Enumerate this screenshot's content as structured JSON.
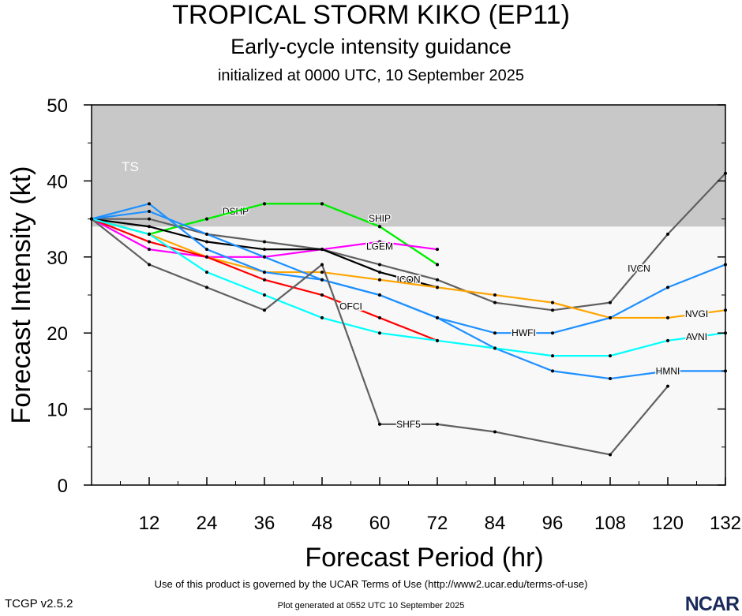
{
  "chart_data": {
    "type": "line",
    "title": "TROPICAL STORM KIKO (EP11)",
    "subtitle": "Early-cycle intensity guidance",
    "initialized": "initialized at 0000 UTC, 10 September 2025",
    "xlabel": "Forecast Period (hr)",
    "ylabel": "Forecast Intensity (kt)",
    "xlim": [
      0,
      132
    ],
    "ylim": [
      0,
      50
    ],
    "xticks": [
      12,
      24,
      36,
      48,
      60,
      72,
      84,
      96,
      108,
      120,
      132
    ],
    "yticks": [
      0,
      10,
      20,
      30,
      40,
      50
    ],
    "x": [
      0,
      12,
      24,
      36,
      48,
      60,
      72,
      84,
      96,
      108,
      120,
      132
    ],
    "bands": [
      {
        "label": "TS",
        "from": 34,
        "to": 50,
        "color": "#c8c8c8"
      }
    ],
    "background_color": "#f8f8f8",
    "series": [
      {
        "name": "DSHP",
        "color": "#00ee00",
        "values": [
          35,
          33,
          35,
          37,
          37,
          34,
          29,
          null,
          null,
          null,
          null,
          null
        ]
      },
      {
        "name": "SHIP",
        "color": "#00ee00",
        "values": [
          35,
          33,
          35,
          37,
          37,
          34,
          29,
          null,
          null,
          null,
          null,
          null
        ]
      },
      {
        "name": "LGEM",
        "color": "#ff00ff",
        "values": [
          35,
          31,
          30,
          30,
          31,
          32,
          31,
          null,
          null,
          null,
          null,
          null
        ]
      },
      {
        "name": "IVCN",
        "color": "#606060",
        "values": [
          35,
          35,
          33,
          32,
          31,
          29,
          27,
          24,
          23,
          24,
          33,
          41
        ]
      },
      {
        "name": "ICON",
        "color": "#000000",
        "values": [
          35,
          34,
          32,
          31,
          31,
          28,
          26,
          null,
          null,
          null,
          null,
          null
        ]
      },
      {
        "name": "NVGI",
        "color": "#ffa500",
        "values": [
          35,
          33,
          30,
          28,
          28,
          27,
          26,
          25,
          24,
          22,
          22,
          23
        ]
      },
      {
        "name": "HWFI",
        "color": "#1e90ff",
        "values": [
          35,
          36,
          33,
          30,
          27,
          25,
          22,
          20,
          20,
          22,
          26,
          29
        ]
      },
      {
        "name": "HMNI",
        "color": "#1e90ff",
        "values": [
          35,
          37,
          31,
          28,
          27,
          25,
          22,
          18,
          15,
          14,
          15,
          15
        ]
      },
      {
        "name": "OFCI",
        "color": "#ff0000",
        "values": [
          35,
          32,
          30,
          27,
          25,
          22,
          19,
          null,
          null,
          null,
          null,
          null
        ]
      },
      {
        "name": "AVNI",
        "color": "#00ffff",
        "values": [
          35,
          33,
          28,
          25,
          22,
          20,
          19,
          18,
          17,
          17,
          19,
          20
        ]
      },
      {
        "name": "SHF5",
        "color": "#606060",
        "values": [
          35,
          29,
          26,
          23,
          29,
          8,
          8,
          7,
          null,
          4,
          13,
          null
        ]
      }
    ]
  },
  "footer": {
    "terms": "Use of this product is governed by the UCAR Terms of Use (http://www2.ucar.edu/terms-of-use)",
    "generated": "Plot generated at 0552 UTC   10 September 2025",
    "version": "TCGP v2.5.2",
    "logo": "NCAR"
  }
}
